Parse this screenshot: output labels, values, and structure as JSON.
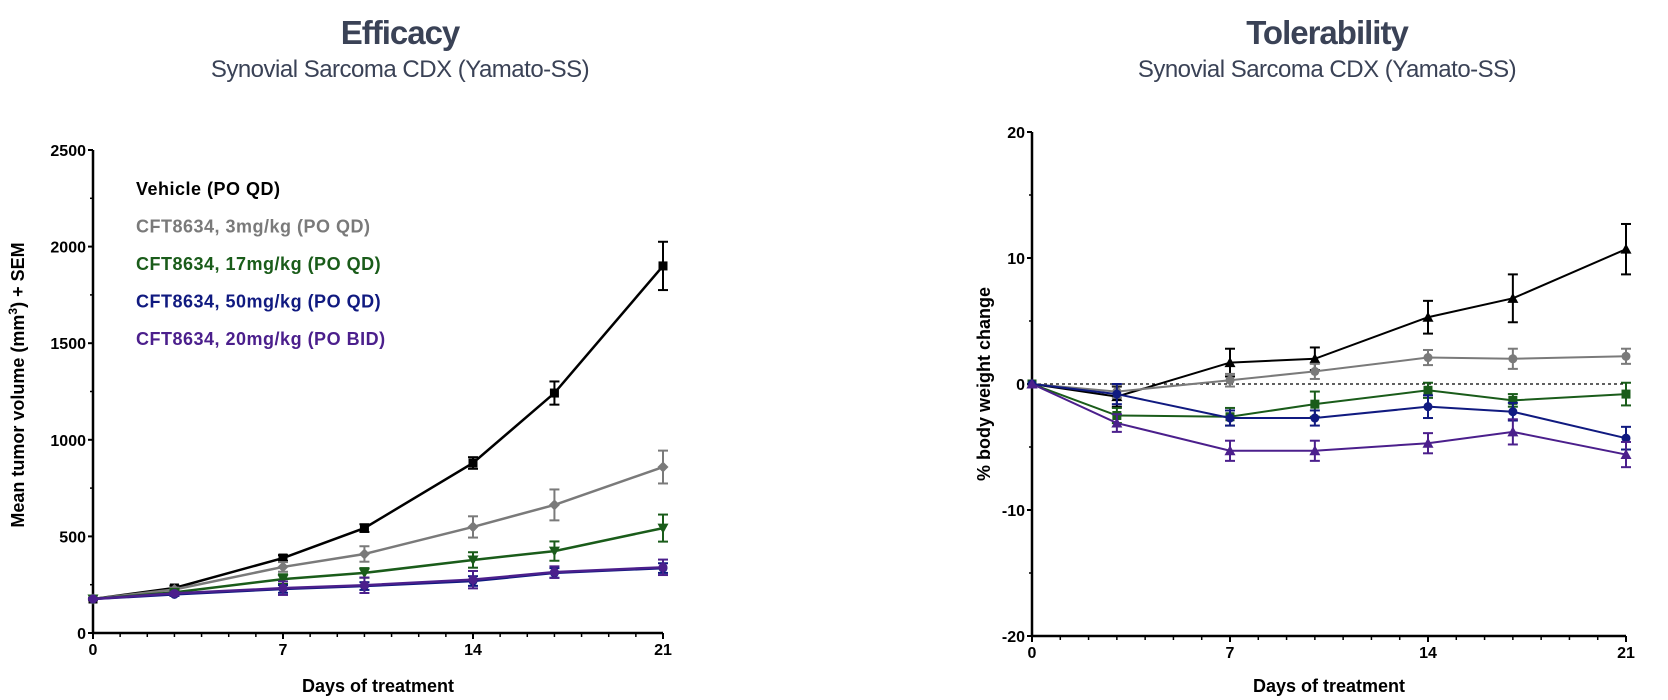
{
  "chart_data": [
    {
      "type": "line",
      "title": "Efficacy",
      "subtitle": "Synovial Sarcoma CDX (Yamato-SS)",
      "xlabel": "Days of treatment",
      "ylabel_main": "Mean tumor volume (mm",
      "ylabel_sup": "3",
      "ylabel_tail": ") + SEM",
      "xlim": [
        0,
        21
      ],
      "ylim": [
        0,
        2500
      ],
      "xticks": [
        0,
        7,
        14,
        21
      ],
      "yticks": [
        0,
        500,
        1000,
        1500,
        2000,
        2500
      ],
      "legend_position": "top-left",
      "x": [
        0,
        3,
        7,
        10,
        14,
        17,
        21
      ],
      "series": [
        {
          "name": "Vehicle (PO QD)",
          "color": "#000000",
          "marker": "square",
          "values": [
            176,
            233,
            388,
            543,
            880,
            1242,
            1900
          ],
          "errors": [
            5,
            12,
            15,
            20,
            30,
            60,
            125
          ]
        },
        {
          "name": "CFT8634, 3mg/kg (PO QD)",
          "color": "#7a7a7a",
          "marker": "diamond",
          "values": [
            176,
            225,
            342,
            409,
            549,
            663,
            859
          ],
          "errors": [
            5,
            10,
            25,
            40,
            55,
            80,
            85
          ]
        },
        {
          "name": "CFT8634, 17mg/kg (PO QD)",
          "color": "#1a5c1a",
          "marker": "triangle-down",
          "values": [
            176,
            210,
            279,
            311,
            378,
            424,
            543
          ],
          "errors": [
            5,
            10,
            25,
            25,
            40,
            50,
            70
          ]
        },
        {
          "name": "CFT8634, 50mg/kg (PO QD)",
          "color": "#101a80",
          "marker": "circle",
          "values": [
            176,
            200,
            228,
            243,
            269,
            311,
            336
          ],
          "errors": [
            5,
            8,
            20,
            20,
            25,
            25,
            25
          ]
        },
        {
          "name": "CFT8634, 20mg/kg (PO BID)",
          "color": "#4b1f8c",
          "marker": "circle",
          "values": [
            176,
            205,
            232,
            247,
            276,
            315,
            340
          ],
          "errors": [
            5,
            8,
            35,
            40,
            45,
            30,
            40
          ]
        }
      ]
    },
    {
      "type": "line",
      "title": "Tolerability",
      "subtitle": "Synovial Sarcoma CDX (Yamato-SS)",
      "xlabel": "Days of treatment",
      "ylabel": "% body weight change",
      "xlim": [
        0,
        21
      ],
      "ylim": [
        -20,
        20
      ],
      "xticks": [
        0,
        7,
        14,
        21
      ],
      "yticks": [
        -20,
        -10,
        0,
        10,
        20
      ],
      "reference_line": 0,
      "x": [
        0,
        3,
        7,
        10,
        14,
        17,
        21
      ],
      "series": [
        {
          "name": "Vehicle (PO QD)",
          "color": "#000000",
          "marker": "triangle",
          "values": [
            0,
            -1.0,
            1.7,
            2.0,
            5.3,
            6.8,
            10.7
          ],
          "errors": [
            0,
            0.8,
            1.1,
            0.9,
            1.3,
            1.9,
            2.0
          ]
        },
        {
          "name": "CFT8634, 3mg/kg (PO QD)",
          "color": "#7a7a7a",
          "marker": "circle",
          "values": [
            0,
            -0.6,
            0.3,
            1.0,
            2.1,
            2.0,
            2.2
          ],
          "errors": [
            0,
            0.5,
            0.5,
            0.6,
            0.6,
            0.8,
            0.6
          ]
        },
        {
          "name": "CFT8634, 17mg/kg (PO QD)",
          "color": "#1a5c1a",
          "marker": "square",
          "values": [
            0,
            -2.5,
            -2.6,
            -1.6,
            -0.5,
            -1.3,
            -0.8
          ],
          "errors": [
            0,
            0.6,
            0.7,
            1.0,
            0.6,
            0.5,
            0.9
          ]
        },
        {
          "name": "CFT8634, 50mg/kg (PO QD)",
          "color": "#101a80",
          "marker": "circle",
          "values": [
            0,
            -0.8,
            -2.7,
            -2.7,
            -1.8,
            -2.2,
            -4.3
          ],
          "errors": [
            0,
            0.8,
            0.6,
            0.6,
            0.9,
            0.7,
            0.9
          ]
        },
        {
          "name": "CFT8634, 20mg/kg (PO BID)",
          "color": "#4b1f8c",
          "marker": "triangle",
          "values": [
            0,
            -3.1,
            -5.3,
            -5.3,
            -4.7,
            -3.8,
            -5.6
          ],
          "errors": [
            0,
            0.7,
            0.8,
            0.8,
            0.8,
            1.0,
            1.0
          ]
        }
      ]
    }
  ]
}
